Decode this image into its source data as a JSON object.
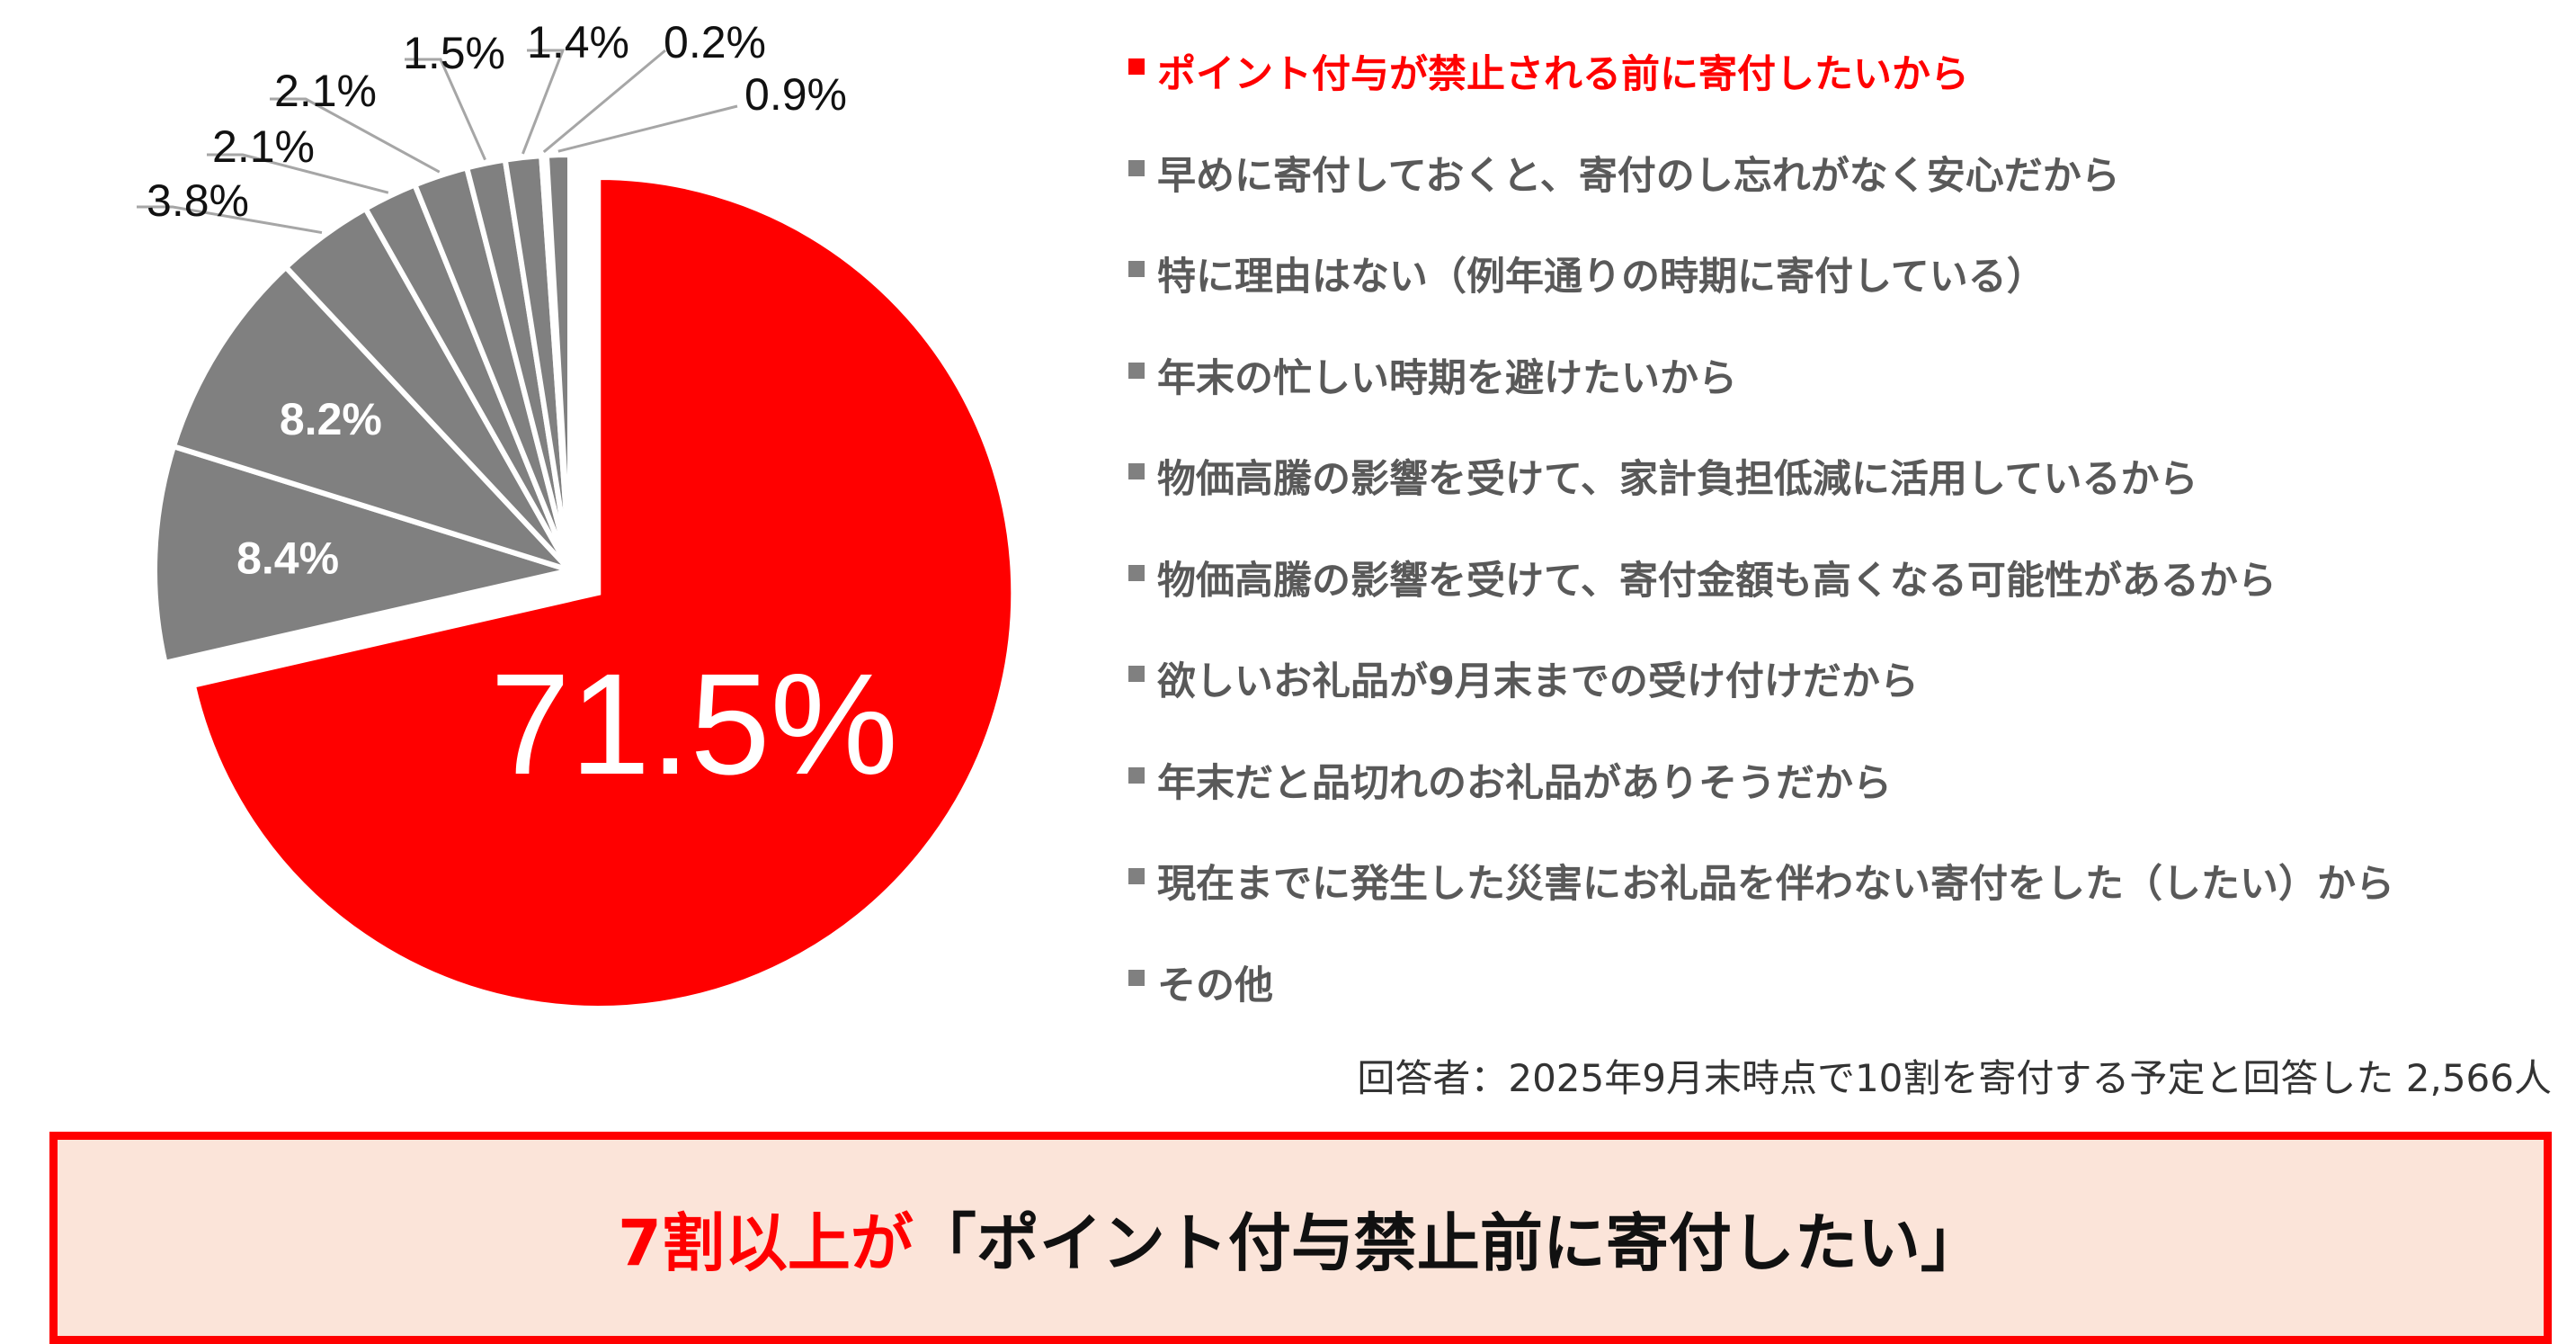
{
  "chart_data": {
    "type": "pie",
    "start": "12 o'clock, clockwise",
    "exploded_slice": 0,
    "colors": {
      "highlight": "#ff0000",
      "other": "#808080"
    },
    "slices": [
      {
        "label": "ポイント付与が禁止される前に寄付したいから",
        "value": 71.5,
        "label_text": "71.5%"
      },
      {
        "label": "早めに寄付しておくと、寄付のし忘れがなく安心だから",
        "value": 8.4,
        "label_text": "8.4%"
      },
      {
        "label": "特に理由はない（例年通りの時期に寄付している）",
        "value": 8.2,
        "label_text": "8.2%"
      },
      {
        "label": "年末の忙しい時期を避けたいから",
        "value": 3.8,
        "label_text": "3.8%"
      },
      {
        "label": "物価高騰の影響を受けて、家計負担低減に活用しているから",
        "value": 2.1,
        "label_text": "2.1%"
      },
      {
        "label": "物価高騰の影響を受けて、寄付金額も高くなる可能性があるから",
        "value": 2.1,
        "label_text": "2.1%"
      },
      {
        "label": "欲しいお礼品が9月末までの受け付けだから",
        "value": 1.5,
        "label_text": "1.5%"
      },
      {
        "label": "年末だと品切れのお礼品がありそうだから",
        "value": 1.4,
        "label_text": "1.4%"
      },
      {
        "label": "現在までに発生した災害にお礼品を伴わない寄付をした（したい）から",
        "value": 0.2,
        "label_text": "0.2%"
      },
      {
        "label": "その他",
        "value": 0.9,
        "label_text": "0.9%"
      }
    ],
    "legend_placement": "right"
  },
  "note": "回答者：2025年9月末時点で10割を寄付する予定と回答した  2,566人",
  "callout": {
    "highlight": "7割以上が",
    "text": "「ポイント付与禁止前に寄付したい」"
  }
}
